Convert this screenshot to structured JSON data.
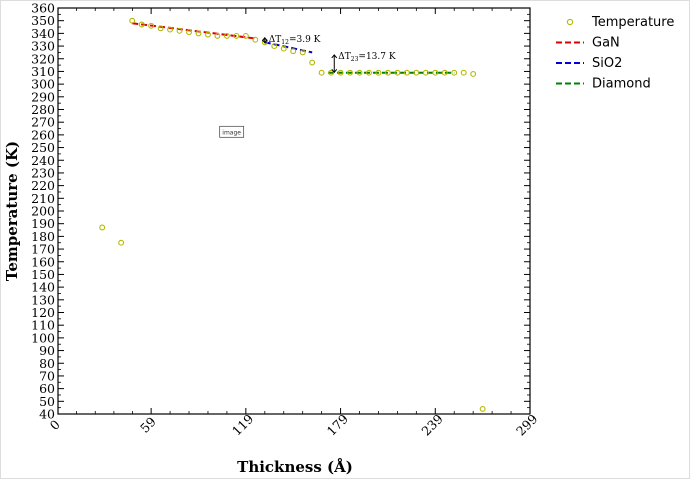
{
  "chart_data": {
    "type": "scatter",
    "xlabel": "Thickness (Å)",
    "ylabel": "Temperature (K)",
    "xlim": [
      0,
      299
    ],
    "ylim": [
      40,
      360
    ],
    "x_ticks": [
      0,
      59,
      119,
      179,
      239,
      299
    ],
    "y_ticks": [
      40,
      50,
      60,
      70,
      80,
      90,
      100,
      110,
      120,
      130,
      140,
      150,
      160,
      170,
      180,
      190,
      200,
      210,
      220,
      230,
      240,
      250,
      260,
      270,
      280,
      290,
      300,
      310,
      320,
      330,
      340,
      350,
      360
    ],
    "legend_position": "outside-right",
    "series": [
      {
        "name": "Temperature",
        "type": "scatter",
        "marker": "open-circle",
        "color": "#b5b800",
        "points": [
          {
            "x": 28,
            "y": 187
          },
          {
            "x": 40,
            "y": 175
          },
          {
            "x": 47,
            "y": 350
          },
          {
            "x": 53,
            "y": 347
          },
          {
            "x": 59,
            "y": 346
          },
          {
            "x": 65,
            "y": 344
          },
          {
            "x": 71,
            "y": 343
          },
          {
            "x": 77,
            "y": 342
          },
          {
            "x": 83,
            "y": 341
          },
          {
            "x": 89,
            "y": 340
          },
          {
            "x": 95,
            "y": 339
          },
          {
            "x": 101,
            "y": 338
          },
          {
            "x": 107,
            "y": 338
          },
          {
            "x": 113,
            "y": 338
          },
          {
            "x": 119,
            "y": 338
          },
          {
            "x": 125,
            "y": 335
          },
          {
            "x": 131,
            "y": 333
          },
          {
            "x": 137,
            "y": 330
          },
          {
            "x": 143,
            "y": 328
          },
          {
            "x": 149,
            "y": 326
          },
          {
            "x": 155,
            "y": 325
          },
          {
            "x": 161,
            "y": 317
          },
          {
            "x": 167,
            "y": 309
          },
          {
            "x": 173,
            "y": 309
          },
          {
            "x": 179,
            "y": 309
          },
          {
            "x": 185,
            "y": 309
          },
          {
            "x": 191,
            "y": 309
          },
          {
            "x": 197,
            "y": 309
          },
          {
            "x": 203,
            "y": 309
          },
          {
            "x": 209,
            "y": 309
          },
          {
            "x": 215,
            "y": 309
          },
          {
            "x": 221,
            "y": 309
          },
          {
            "x": 227,
            "y": 309
          },
          {
            "x": 233,
            "y": 309
          },
          {
            "x": 239,
            "y": 309
          },
          {
            "x": 245,
            "y": 309
          },
          {
            "x": 251,
            "y": 309
          },
          {
            "x": 257,
            "y": 309
          },
          {
            "x": 263,
            "y": 308
          },
          {
            "x": 269,
            "y": 44
          }
        ]
      },
      {
        "name": "GaN",
        "type": "line",
        "style": "dashed",
        "color": "#dd0000",
        "points": [
          {
            "x": 47,
            "y": 348
          },
          {
            "x": 125,
            "y": 336
          }
        ]
      },
      {
        "name": "SiO2",
        "type": "line",
        "style": "dashed",
        "color": "#0000dd",
        "points": [
          {
            "x": 131,
            "y": 333
          },
          {
            "x": 161,
            "y": 325
          }
        ]
      },
      {
        "name": "Diamond",
        "type": "line",
        "style": "dashed",
        "color": "#008000",
        "points": [
          {
            "x": 171,
            "y": 309
          },
          {
            "x": 251,
            "y": 309
          }
        ]
      }
    ],
    "annotations": [
      {
        "prefix": "ΔT",
        "sub": "12",
        "suffix": "=3.9 K",
        "x": 131,
        "y_top": 336.5,
        "y_bottom": 332.6
      },
      {
        "prefix": "ΔT",
        "sub": "23",
        "suffix": "=13.7 K",
        "x": 175,
        "y_top": 323,
        "y_bottom": 309.3
      }
    ],
    "placeholder_label": "image"
  }
}
